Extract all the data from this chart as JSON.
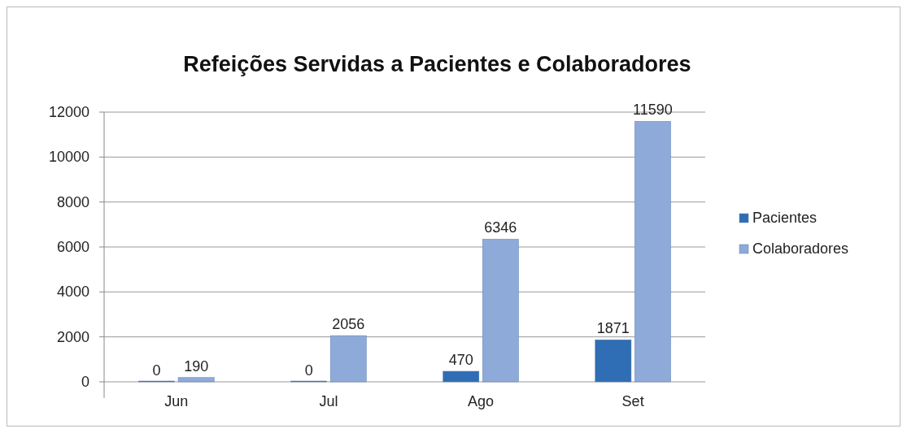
{
  "chart_data": {
    "type": "bar",
    "title": "Refeições Servidas a Pacientes e Colaboradores",
    "categories": [
      "Jun",
      "Jul",
      "Ago",
      "Set"
    ],
    "series": [
      {
        "name": "Pacientes",
        "color": "#2f6db5",
        "values": [
          0,
          0,
          470,
          1871
        ]
      },
      {
        "name": "Colaboradores",
        "color": "#8eaad9",
        "values": [
          190,
          2056,
          6346,
          11590
        ]
      }
    ],
    "ylim": [
      0,
      12000
    ],
    "yticks": [
      0,
      2000,
      4000,
      6000,
      8000,
      10000,
      12000
    ],
    "grid": "y",
    "legend": "right",
    "data_labels": true
  }
}
